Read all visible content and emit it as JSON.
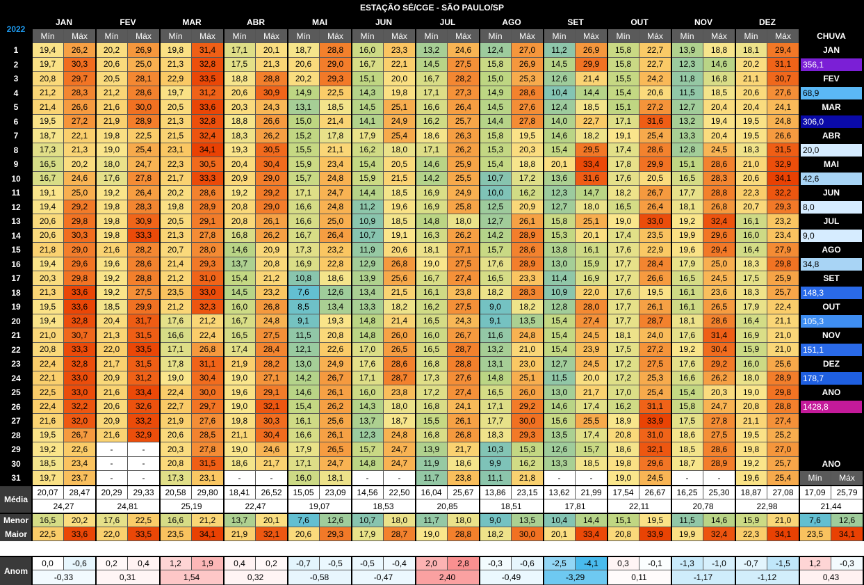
{
  "title": "ESTAÇÃO SÉ/CGE - SÃO PAULO/SP",
  "year": "2022",
  "min_label": "Mín",
  "max_label": "Máx",
  "months": [
    "JAN",
    "FEV",
    "MAR",
    "ABR",
    "MAI",
    "JUN",
    "JUL",
    "AGO",
    "SET",
    "OUT",
    "NOV",
    "DEZ"
  ],
  "days": [
    "1",
    "2",
    "3",
    "4",
    "5",
    "6",
    "7",
    "8",
    "9",
    "10",
    "11",
    "12",
    "13",
    "14",
    "15",
    "16",
    "17",
    "18",
    "19",
    "20",
    "21",
    "22",
    "23",
    "24",
    "25",
    "26",
    "27",
    "28",
    "29",
    "30",
    "31"
  ],
  "temps": [
    [
      "19,4",
      "26,2",
      "20,2",
      "26,9",
      "19,8",
      "31,4",
      "17,1",
      "20,1",
      "18,7",
      "28,8",
      "16,0",
      "23,3",
      "13,2",
      "24,6",
      "12,4",
      "27,0",
      "11,2",
      "26,9",
      "15,8",
      "22,7",
      "13,9",
      "18,8",
      "18,1",
      "29,4"
    ],
    [
      "19,7",
      "30,3",
      "20,6",
      "25,0",
      "21,3",
      "32,8",
      "17,5",
      "21,3",
      "20,6",
      "29,0",
      "16,7",
      "22,1",
      "14,5",
      "27,5",
      "15,8",
      "26,9",
      "14,5",
      "29,9",
      "15,8",
      "22,7",
      "12,3",
      "14,6",
      "20,2",
      "31,1"
    ],
    [
      "20,8",
      "29,7",
      "20,5",
      "28,1",
      "22,9",
      "33,5",
      "18,8",
      "28,8",
      "20,2",
      "29,3",
      "15,1",
      "20,0",
      "16,7",
      "28,2",
      "15,0",
      "25,3",
      "12,6",
      "21,4",
      "15,5",
      "24,2",
      "11,8",
      "16,8",
      "21,1",
      "30,7"
    ],
    [
      "21,2",
      "28,3",
      "21,2",
      "28,6",
      "19,7",
      "31,2",
      "20,6",
      "30,9",
      "14,9",
      "22,5",
      "14,3",
      "19,8",
      "17,1",
      "27,3",
      "14,9",
      "28,6",
      "10,4",
      "14,4",
      "15,4",
      "20,6",
      "11,5",
      "18,5",
      "20,6",
      "27,6"
    ],
    [
      "21,4",
      "26,6",
      "21,6",
      "30,0",
      "20,5",
      "33,6",
      "20,3",
      "24,3",
      "13,1",
      "18,5",
      "14,5",
      "25,1",
      "16,6",
      "26,4",
      "14,5",
      "27,6",
      "12,4",
      "18,5",
      "15,1",
      "27,2",
      "12,7",
      "20,4",
      "20,4",
      "24,1"
    ],
    [
      "19,5",
      "27,2",
      "21,9",
      "28,9",
      "21,3",
      "32,8",
      "18,8",
      "26,6",
      "15,0",
      "21,4",
      "14,1",
      "24,9",
      "16,2",
      "25,7",
      "14,4",
      "27,8",
      "14,0",
      "22,7",
      "17,1",
      "31,6",
      "13,2",
      "19,4",
      "19,5",
      "24,8"
    ],
    [
      "18,7",
      "22,1",
      "19,8",
      "22,5",
      "21,5",
      "32,4",
      "18,3",
      "26,2",
      "15,2",
      "17,8",
      "17,9",
      "25,4",
      "18,6",
      "26,3",
      "15,8",
      "19,5",
      "14,6",
      "18,2",
      "19,1",
      "25,4",
      "13,3",
      "20,4",
      "19,5",
      "26,6"
    ],
    [
      "17,3",
      "21,3",
      "19,0",
      "25,4",
      "23,1",
      "34,1",
      "19,3",
      "30,5",
      "15,5",
      "21,1",
      "16,2",
      "18,0",
      "17,1",
      "26,2",
      "15,3",
      "20,3",
      "15,4",
      "29,5",
      "17,4",
      "28,6",
      "12,8",
      "24,5",
      "18,3",
      "31,5"
    ],
    [
      "16,5",
      "20,2",
      "18,0",
      "24,7",
      "22,3",
      "30,5",
      "20,4",
      "30,4",
      "15,9",
      "23,4",
      "15,4",
      "20,5",
      "14,6",
      "25,9",
      "15,4",
      "18,8",
      "20,1",
      "33,4",
      "17,8",
      "29,9",
      "15,1",
      "28,6",
      "21,0",
      "32,9"
    ],
    [
      "16,7",
      "24,6",
      "17,6",
      "27,8",
      "21,7",
      "33,3",
      "20,9",
      "29,0",
      "15,7",
      "24,8",
      "15,9",
      "21,5",
      "14,2",
      "25,5",
      "10,7",
      "17,2",
      "13,6",
      "31,6",
      "17,6",
      "20,5",
      "16,5",
      "28,3",
      "20,6",
      "34,1"
    ],
    [
      "19,1",
      "25,0",
      "19,2",
      "26,4",
      "20,2",
      "28,6",
      "19,2",
      "29,2",
      "17,1",
      "24,7",
      "14,4",
      "18,5",
      "16,9",
      "24,9",
      "10,0",
      "16,2",
      "12,3",
      "14,7",
      "18,2",
      "26,7",
      "17,7",
      "28,8",
      "22,3",
      "32,2"
    ],
    [
      "19,4",
      "29,2",
      "19,8",
      "28,3",
      "19,8",
      "28,9",
      "20,8",
      "29,0",
      "16,6",
      "24,8",
      "11,2",
      "19,6",
      "16,9",
      "25,8",
      "12,5",
      "20,9",
      "12,7",
      "18,0",
      "16,5",
      "26,4",
      "18,1",
      "26,8",
      "20,7",
      "29,3"
    ],
    [
      "20,6",
      "29,8",
      "19,8",
      "30,9",
      "20,5",
      "29,1",
      "20,8",
      "26,1",
      "16,6",
      "25,0",
      "10,9",
      "18,5",
      "14,8",
      "18,0",
      "12,7",
      "26,1",
      "15,8",
      "25,1",
      "19,0",
      "33,0",
      "19,2",
      "32,4",
      "16,1",
      "23,2"
    ],
    [
      "20,6",
      "30,3",
      "19,8",
      "33,3",
      "21,3",
      "27,8",
      "16,8",
      "26,2",
      "16,7",
      "26,4",
      "10,7",
      "19,1",
      "16,3",
      "26,2",
      "14,2",
      "28,9",
      "15,3",
      "20,1",
      "17,4",
      "23,5",
      "19,9",
      "29,6",
      "16,0",
      "23,4"
    ],
    [
      "21,8",
      "29,0",
      "21,6",
      "28,2",
      "20,7",
      "28,0",
      "14,6",
      "20,9",
      "17,3",
      "23,2",
      "11,9",
      "20,6",
      "18,1",
      "27,1",
      "15,7",
      "28,6",
      "13,8",
      "16,1",
      "17,6",
      "22,9",
      "19,6",
      "29,4",
      "16,4",
      "27,9"
    ],
    [
      "19,4",
      "29,6",
      "19,6",
      "28,6",
      "21,4",
      "29,3",
      "13,7",
      "20,8",
      "16,9",
      "22,8",
      "12,9",
      "26,8",
      "19,0",
      "27,5",
      "17,6",
      "28,9",
      "13,0",
      "15,9",
      "17,7",
      "28,4",
      "17,9",
      "25,0",
      "18,3",
      "29,8"
    ],
    [
      "20,3",
      "29,8",
      "19,2",
      "28,8",
      "21,2",
      "31,0",
      "15,4",
      "21,2",
      "10,8",
      "18,6",
      "13,9",
      "25,6",
      "16,7",
      "27,4",
      "16,5",
      "23,3",
      "11,4",
      "16,9",
      "17,7",
      "26,6",
      "16,5",
      "24,5",
      "17,5",
      "25,9"
    ],
    [
      "21,3",
      "33,6",
      "19,2",
      "27,5",
      "23,5",
      "33,0",
      "14,5",
      "23,2",
      "7,6",
      "12,6",
      "13,4",
      "21,5",
      "16,1",
      "23,8",
      "18,2",
      "28,3",
      "10,9",
      "22,0",
      "17,6",
      "19,5",
      "16,1",
      "23,6",
      "18,3",
      "25,7"
    ],
    [
      "19,5",
      "33,6",
      "18,5",
      "29,9",
      "21,2",
      "32,3",
      "16,0",
      "26,8",
      "8,5",
      "13,4",
      "13,3",
      "18,2",
      "16,2",
      "27,5",
      "9,0",
      "18,2",
      "12,8",
      "28,0",
      "17,7",
      "26,1",
      "16,1",
      "26,5",
      "17,9",
      "22,4"
    ],
    [
      "19,4",
      "32,8",
      "20,4",
      "31,7",
      "17,6",
      "21,2",
      "16,7",
      "24,8",
      "9,1",
      "19,3",
      "14,8",
      "21,4",
      "16,5",
      "24,3",
      "9,1",
      "13,5",
      "15,4",
      "27,4",
      "17,7",
      "28,7",
      "18,1",
      "28,6",
      "16,4",
      "21,1"
    ],
    [
      "21,0",
      "30,7",
      "21,3",
      "31,5",
      "16,6",
      "22,4",
      "16,5",
      "27,5",
      "11,5",
      "20,8",
      "14,8",
      "26,0",
      "16,0",
      "26,7",
      "11,6",
      "24,8",
      "15,4",
      "24,5",
      "18,1",
      "24,0",
      "17,6",
      "31,4",
      "16,9",
      "21,0"
    ],
    [
      "20,8",
      "33,3",
      "22,0",
      "33,5",
      "17,1",
      "26,8",
      "17,4",
      "28,4",
      "12,1",
      "22,6",
      "17,0",
      "26,5",
      "16,5",
      "28,7",
      "13,2",
      "21,0",
      "15,4",
      "23,9",
      "17,5",
      "27,2",
      "19,2",
      "30,4",
      "15,9",
      "21,0"
    ],
    [
      "22,4",
      "32,8",
      "21,7",
      "31,5",
      "17,8",
      "31,1",
      "21,9",
      "28,2",
      "13,0",
      "24,9",
      "17,6",
      "28,6",
      "16,8",
      "28,8",
      "13,1",
      "23,0",
      "12,7",
      "24,5",
      "17,2",
      "27,5",
      "17,6",
      "29,2",
      "16,0",
      "25,6"
    ],
    [
      "22,1",
      "33,0",
      "20,9",
      "31,2",
      "19,0",
      "30,4",
      "19,0",
      "27,1",
      "14,2",
      "26,7",
      "17,1",
      "28,7",
      "17,3",
      "27,6",
      "14,8",
      "25,1",
      "11,5",
      "20,0",
      "17,2",
      "25,3",
      "16,6",
      "26,2",
      "18,0",
      "28,9"
    ],
    [
      "22,5",
      "33,0",
      "21,6",
      "33,4",
      "22,4",
      "30,0",
      "19,6",
      "29,1",
      "14,6",
      "26,1",
      "16,0",
      "23,8",
      "17,2",
      "27,4",
      "16,5",
      "26,0",
      "13,0",
      "21,7",
      "17,0",
      "25,4",
      "15,4",
      "20,3",
      "19,0",
      "29,8"
    ],
    [
      "22,4",
      "32,2",
      "20,6",
      "32,6",
      "22,7",
      "29,7",
      "19,0",
      "32,1",
      "15,4",
      "26,2",
      "14,3",
      "18,0",
      "16,8",
      "24,1",
      "17,1",
      "29,2",
      "14,6",
      "17,4",
      "16,2",
      "31,1",
      "15,8",
      "24,7",
      "20,8",
      "28,8"
    ],
    [
      "21,6",
      "32,0",
      "20,9",
      "33,2",
      "21,9",
      "27,6",
      "19,8",
      "30,3",
      "16,1",
      "25,6",
      "13,7",
      "18,7",
      "15,5",
      "26,1",
      "17,7",
      "30,0",
      "15,6",
      "25,5",
      "18,9",
      "33,9",
      "17,5",
      "27,8",
      "21,1",
      "27,4"
    ],
    [
      "19,5",
      "26,7",
      "21,6",
      "32,9",
      "20,6",
      "28,5",
      "21,1",
      "30,4",
      "16,6",
      "26,1",
      "12,3",
      "24,8",
      "16,8",
      "26,8",
      "18,3",
      "29,3",
      "13,5",
      "17,4",
      "20,8",
      "31,0",
      "18,6",
      "27,5",
      "19,5",
      "25,2"
    ],
    [
      "19,2",
      "22,6",
      "-",
      "-",
      "20,3",
      "27,8",
      "19,0",
      "24,6",
      "17,9",
      "26,5",
      "15,7",
      "24,7",
      "13,9",
      "21,7",
      "10,3",
      "15,3",
      "12,6",
      "15,7",
      "18,6",
      "32,1",
      "18,5",
      "28,6",
      "19,8",
      "27,0"
    ],
    [
      "18,5",
      "23,4",
      "-",
      "-",
      "20,8",
      "31,5",
      "18,6",
      "21,7",
      "17,1",
      "24,7",
      "14,8",
      "24,7",
      "11,9",
      "18,6",
      "9,9",
      "16,2",
      "13,3",
      "18,5",
      "19,8",
      "29,6",
      "18,7",
      "28,9",
      "19,2",
      "25,7"
    ],
    [
      "19,7",
      "23,7",
      "-",
      "-",
      "17,3",
      "23,1",
      "-",
      "-",
      "16,0",
      "18,1",
      "-",
      "-",
      "11,7",
      "23,8",
      "11,1",
      "21,8",
      "-",
      "-",
      "19,0",
      "24,5",
      "-",
      "-",
      "19,6",
      "25,4"
    ]
  ],
  "chuva_title": "CHUVA",
  "chuva": [
    {
      "label": "JAN",
      "value": "356,1",
      "color": "#7b1fd6",
      "fg": "#ffffff"
    },
    {
      "label": "FEV",
      "value": "68,9",
      "color": "#5bb8f5",
      "fg": "#000000"
    },
    {
      "label": "MAR",
      "value": "306,0",
      "color": "#0a0aa8",
      "fg": "#ffffff"
    },
    {
      "label": "ABR",
      "value": "20,0",
      "color": "#d6ecff",
      "fg": "#000000"
    },
    {
      "label": "MAI",
      "value": "42,6",
      "color": "#a8d4f5",
      "fg": "#000000"
    },
    {
      "label": "JUN",
      "value": "8,0",
      "color": "#d6ecff",
      "fg": "#000000"
    },
    {
      "label": "JUL",
      "value": "9,0",
      "color": "#d6ecff",
      "fg": "#000000"
    },
    {
      "label": "AGO",
      "value": "34,8",
      "color": "#a8d4f5",
      "fg": "#000000"
    },
    {
      "label": "SET",
      "value": "148,3",
      "color": "#2a6ae8",
      "fg": "#ffffff"
    },
    {
      "label": "OUT",
      "value": "105,3",
      "color": "#3f8ef2",
      "fg": "#ffffff"
    },
    {
      "label": "NOV",
      "value": "151,1",
      "color": "#2a6ae8",
      "fg": "#ffffff"
    },
    {
      "label": "DEZ",
      "value": "178,7",
      "color": "#1f5fe0",
      "fg": "#ffffff"
    },
    {
      "label": "ANO",
      "value": "1428,8",
      "color": "#c41a9a",
      "fg": "#ffffff"
    }
  ],
  "ano_label": "ANO",
  "media_label": "Média",
  "menor_label": "Menor",
  "maior_label": "Maior",
  "anom_label": "Anom",
  "media_pair": [
    "20,07",
    "28,47",
    "20,29",
    "29,33",
    "20,58",
    "29,80",
    "18,41",
    "26,52",
    "15,05",
    "23,09",
    "14,56",
    "22,50",
    "16,04",
    "25,67",
    "13,86",
    "23,15",
    "13,62",
    "21,99",
    "17,54",
    "26,67",
    "16,25",
    "25,30",
    "18,87",
    "27,08",
    "17,09",
    "25,79"
  ],
  "media_month": [
    "24,27",
    "24,81",
    "25,19",
    "22,47",
    "19,07",
    "18,53",
    "20,85",
    "18,51",
    "17,81",
    "22,11",
    "20,78",
    "22,98",
    "21,44"
  ],
  "menor": [
    "16,5",
    "20,2",
    "17,6",
    "22,5",
    "16,6",
    "21,2",
    "13,7",
    "20,1",
    "7,6",
    "12,6",
    "10,7",
    "18,0",
    "11,7",
    "18,0",
    "9,0",
    "13,5",
    "10,4",
    "14,4",
    "15,1",
    "19,5",
    "11,5",
    "14,6",
    "15,9",
    "21,0",
    "7,6",
    "12,6"
  ],
  "maior": [
    "22,5",
    "33,6",
    "22,0",
    "33,5",
    "23,5",
    "34,1",
    "21,9",
    "32,1",
    "20,6",
    "29,3",
    "17,9",
    "28,7",
    "19,0",
    "28,8",
    "18,2",
    "30,0",
    "20,1",
    "33,4",
    "20,8",
    "33,9",
    "19,9",
    "32,4",
    "22,3",
    "34,1",
    "23,5",
    "34,1"
  ],
  "anom_pair": [
    "0,0",
    "-0,6",
    "0,2",
    "0,4",
    "1,2",
    "1,9",
    "0,4",
    "0,2",
    "-0,7",
    "-0,5",
    "-0,5",
    "-0,4",
    "2,0",
    "2,8",
    "-0,3",
    "-0,6",
    "-2,5",
    "-4,1",
    "0,3",
    "-0,1",
    "-1,3",
    "-1,0",
    "-0,7",
    "-1,5",
    "1,2",
    "-0,3"
  ],
  "anom_month": [
    "-0,33",
    "0,31",
    "1,54",
    "0,32",
    "-0,58",
    "-0,47",
    "2,40",
    "-0,49",
    "-3,29",
    "0,11",
    "-1,17",
    "-1,12",
    "0,43"
  ]
}
